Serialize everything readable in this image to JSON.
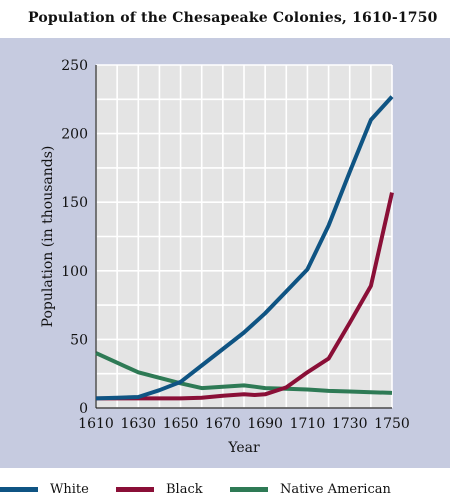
{
  "chart_data": {
    "type": "line",
    "title": "Population of the Chesapeake Colonies, 1610-1750",
    "xlabel": "Year",
    "ylabel": "Population (in thousands)",
    "xlim": [
      1610,
      1750
    ],
    "ylim": [
      0,
      250
    ],
    "xticks": [
      1610,
      1630,
      1650,
      1670,
      1690,
      1710,
      1730,
      1750
    ],
    "yticks": [
      0,
      50,
      100,
      150,
      200,
      250
    ],
    "grid": true,
    "legend": "bottom",
    "x": [
      1610,
      1620,
      1630,
      1640,
      1650,
      1660,
      1670,
      1680,
      1685,
      1690,
      1700,
      1710,
      1720,
      1730,
      1740,
      1750
    ],
    "series": [
      {
        "name": "White",
        "color": "#0f5483",
        "values": [
          7,
          7.5,
          8,
          13,
          19,
          31,
          43,
          55,
          62,
          69,
          85,
          101,
          133,
          172,
          210,
          227
        ]
      },
      {
        "name": "Black",
        "color": "#8a0f37",
        "values": [
          7,
          7,
          7,
          7,
          7,
          7.5,
          9,
          10,
          9.5,
          10,
          15,
          26,
          36,
          62,
          89,
          157
        ]
      },
      {
        "name": "Native American",
        "color": "#2e7a55",
        "values": [
          40,
          33,
          26,
          22,
          18,
          14.5,
          15.5,
          16.5,
          15.5,
          14.5,
          14,
          13.5,
          12.5,
          12,
          11.5,
          11
        ]
      }
    ]
  }
}
